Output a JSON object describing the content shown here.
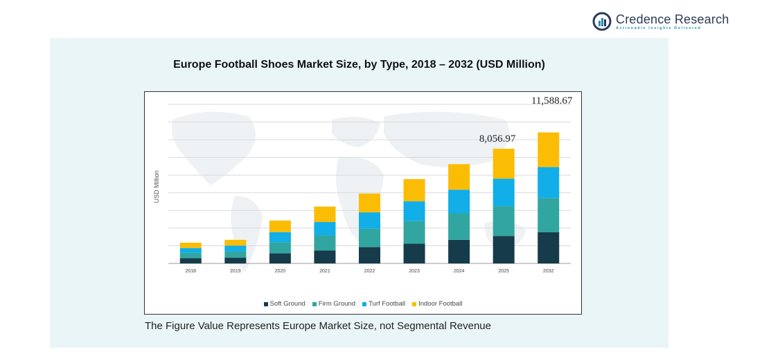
{
  "logo": {
    "name": "Credence Research",
    "tagline": "Actionable Insights Delivered"
  },
  "footnote": "The Figure Value Represents Europe Market Size, not Segmental Revenue",
  "colors": {
    "soft_ground": "#163b4a",
    "firm_ground": "#31a6a0",
    "turf_football": "#11aee8",
    "indoor_football": "#fbbc04",
    "panel": "#e9f5f6"
  },
  "chart_data": {
    "type": "bar",
    "stacked": true,
    "title": "Europe Football Shoes Market Size, by Type, 2018 – 2032 (USD Million)",
    "xlabel": "",
    "ylabel": "USD Million",
    "categories": [
      "2018",
      "2019",
      "2020",
      "2021",
      "2022",
      "2023",
      "2024",
      "2025",
      "2032"
    ],
    "ylim": [
      0,
      16500
    ],
    "grid": true,
    "legend_position": "bottom",
    "series": [
      {
        "name": "Soft Ground",
        "values": [
          550,
          600,
          1050,
          1350,
          1700,
          2050,
          2450,
          2850,
          3250
        ]
      },
      {
        "name": "Firm Ground",
        "values": [
          550,
          650,
          1150,
          1550,
          1900,
          2350,
          2750,
          3100,
          3550
        ]
      },
      {
        "name": "Turf Football",
        "values": [
          500,
          600,
          1050,
          1400,
          1700,
          2050,
          2450,
          2850,
          3200
        ]
      },
      {
        "name": "Indoor Football",
        "values": [
          550,
          600,
          1200,
          1600,
          1950,
          2300,
          2650,
          3100,
          3589
        ]
      }
    ],
    "annotations": [
      {
        "category": "2025",
        "label": "8,056.97"
      },
      {
        "category": "2032",
        "label": "11,588.67"
      }
    ]
  }
}
